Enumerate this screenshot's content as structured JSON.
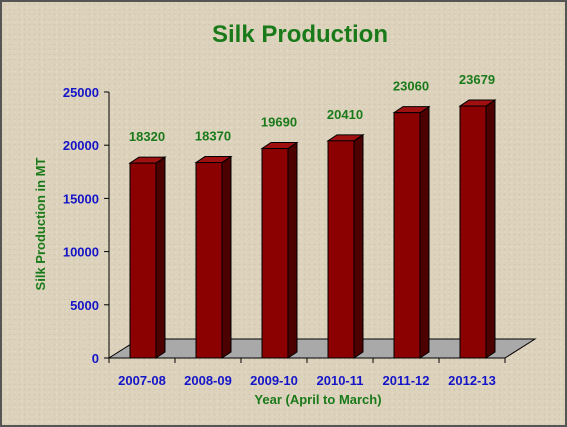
{
  "chart_data": {
    "type": "bar",
    "title": "Silk Production",
    "ylabel": "Silk Production in MT",
    "xlabel": "Year (April to March)",
    "categories": [
      "2007-08",
      "2008-09",
      "2009-10",
      "2010-11",
      "2011-12",
      "2012-13"
    ],
    "series": [
      {
        "values": [
          18320,
          18370,
          19690,
          20410,
          23060,
          23679
        ],
        "labels": [
          "18320",
          "18370",
          "19690",
          "20410",
          "23060",
          "23679"
        ]
      }
    ],
    "ylim": [
      0,
      25000
    ],
    "yticks": [
      "0",
      "5000",
      "10000",
      "15000",
      "20000",
      "25000"
    ],
    "grid": false,
    "legend": "none",
    "colors": {
      "bar": "#8b0000",
      "floor": "#a9a9a9",
      "title": "#1a7a1a",
      "ticks": "#1515c8",
      "data_labels": "#1a7a1a"
    }
  }
}
